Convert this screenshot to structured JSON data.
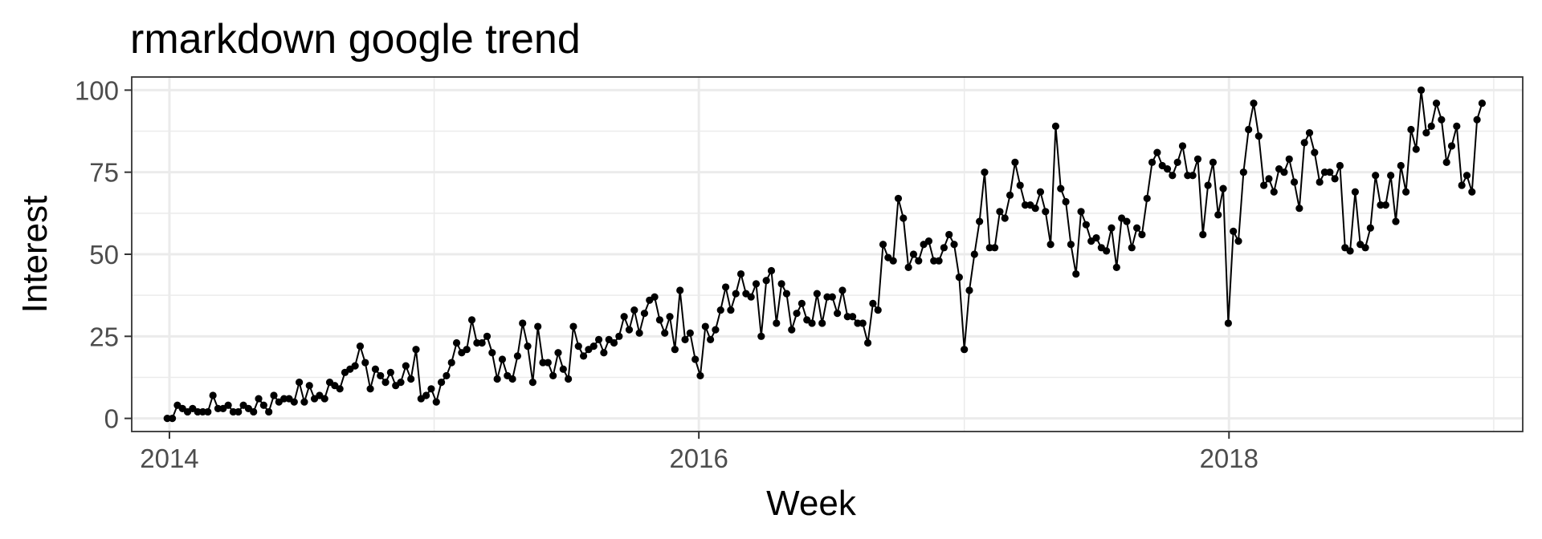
{
  "chart_data": {
    "type": "line",
    "title": "rmarkdown google trend",
    "xlabel": "Week",
    "ylabel": "Interest",
    "x_range": [
      "2013-11-10",
      "2019-02-10"
    ],
    "ylim": [
      -4,
      104
    ],
    "x_ticks": [
      {
        "date": "2014-01-01",
        "label": "2014"
      },
      {
        "date": "2016-01-01",
        "label": "2016"
      },
      {
        "date": "2018-01-01",
        "label": "2018"
      }
    ],
    "x_minor_ticks": [
      "2015-01-01",
      "2017-01-01",
      "2019-01-01"
    ],
    "y_ticks": [
      0,
      25,
      50,
      75,
      100
    ],
    "y_minor_ticks": [
      12.5,
      37.5,
      62.5,
      87.5
    ],
    "grid": true,
    "markers": true,
    "line_color": "#000000",
    "series": [
      {
        "start": "2013-12-29",
        "interval_days": 7,
        "values": [
          0,
          0,
          4,
          3,
          2,
          3,
          2,
          2,
          2,
          7,
          3,
          3,
          4,
          2,
          2,
          4,
          3,
          2,
          6,
          4,
          2,
          7,
          5,
          6,
          6,
          5,
          11,
          5,
          10,
          6,
          7,
          6,
          11,
          10,
          9,
          14,
          15,
          16,
          22,
          17,
          9,
          15,
          13,
          11,
          14,
          10,
          11,
          16,
          12,
          21,
          6,
          7,
          9,
          5,
          11,
          13,
          17,
          23,
          20,
          21,
          30,
          23,
          23,
          25,
          20,
          12,
          18,
          13,
          12,
          19,
          29,
          22,
          11,
          28,
          17,
          17,
          13,
          20,
          15,
          12,
          28,
          22,
          19,
          21,
          22,
          24,
          20,
          24,
          23,
          25,
          31,
          27,
          33,
          26,
          32,
          36,
          37,
          30,
          26,
          31,
          21,
          39,
          24,
          26,
          18,
          13,
          28,
          24,
          27,
          33,
          40,
          33,
          38,
          44,
          38,
          37,
          41,
          25,
          42,
          45,
          29,
          41,
          38,
          27,
          32,
          35,
          30,
          29,
          38,
          29,
          37,
          37,
          32,
          39,
          31,
          31,
          29,
          29,
          23,
          35,
          33,
          53,
          49,
          48,
          67,
          61,
          46,
          50,
          48,
          53,
          54,
          48,
          48,
          52,
          56,
          53,
          43,
          21,
          39,
          50,
          60,
          75,
          52,
          52,
          63,
          61,
          68,
          78,
          71,
          65,
          65,
          64,
          69,
          63,
          53,
          89,
          70,
          66,
          53,
          44,
          63,
          59,
          54,
          55,
          52,
          51,
          58,
          46,
          61,
          60,
          52,
          58,
          56,
          67,
          78,
          81,
          77,
          76,
          74,
          78,
          83,
          74,
          74,
          79,
          56,
          71,
          78,
          62,
          70,
          29,
          57,
          54,
          75,
          88,
          96,
          86,
          71,
          73,
          69,
          76,
          75,
          79,
          72,
          64,
          84,
          87,
          81,
          72,
          75,
          75,
          73,
          77,
          52,
          51,
          69,
          53,
          52,
          58,
          74,
          65,
          65,
          74,
          60,
          77,
          69,
          88,
          82,
          100,
          87,
          89,
          96,
          91,
          78,
          83,
          89,
          71,
          74,
          69,
          91,
          96
        ]
      }
    ]
  }
}
